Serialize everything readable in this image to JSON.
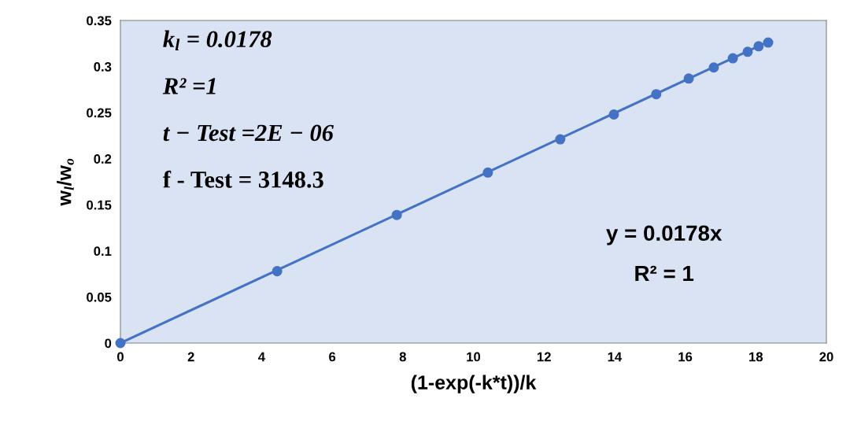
{
  "chart_data": {
    "type": "scatter",
    "xlabel": "(1-exp(-k*t))/k",
    "ylabel": "w$_{l}$/w$_{o}$",
    "xlim": [
      0,
      20
    ],
    "ylim": [
      0,
      0.35
    ],
    "xticks": [
      0,
      2,
      4,
      6,
      8,
      10,
      12,
      14,
      16,
      18,
      20
    ],
    "yticks": [
      0,
      0.05,
      0.1,
      0.15,
      0.2,
      0.25,
      0.3,
      0.35
    ],
    "grid": false,
    "legend": false,
    "series": [
      {
        "color": "#4472c4",
        "marker": "circle",
        "x": [
          0,
          4.44,
          7.83,
          10.41,
          12.46,
          13.98,
          15.18,
          16.1,
          16.81,
          17.35,
          17.77,
          18.08,
          18.35
        ],
        "values": [
          0,
          0.078,
          0.139,
          0.185,
          0.221,
          0.248,
          0.27,
          0.287,
          0.299,
          0.309,
          0.316,
          0.322,
          0.326
        ]
      },
      {
        "type": "line",
        "color": "#4472c4",
        "line_style": "solid",
        "x": [
          0,
          18.35
        ],
        "values": [
          0,
          0.327
        ]
      }
    ],
    "annotations": [
      "k$_{l}$ = 0.0178",
      "R² =1",
      "t − Test =2E − 06",
      "f - Test = 3148.3",
      "y = 0.0178x",
      "R² = 1"
    ]
  }
}
